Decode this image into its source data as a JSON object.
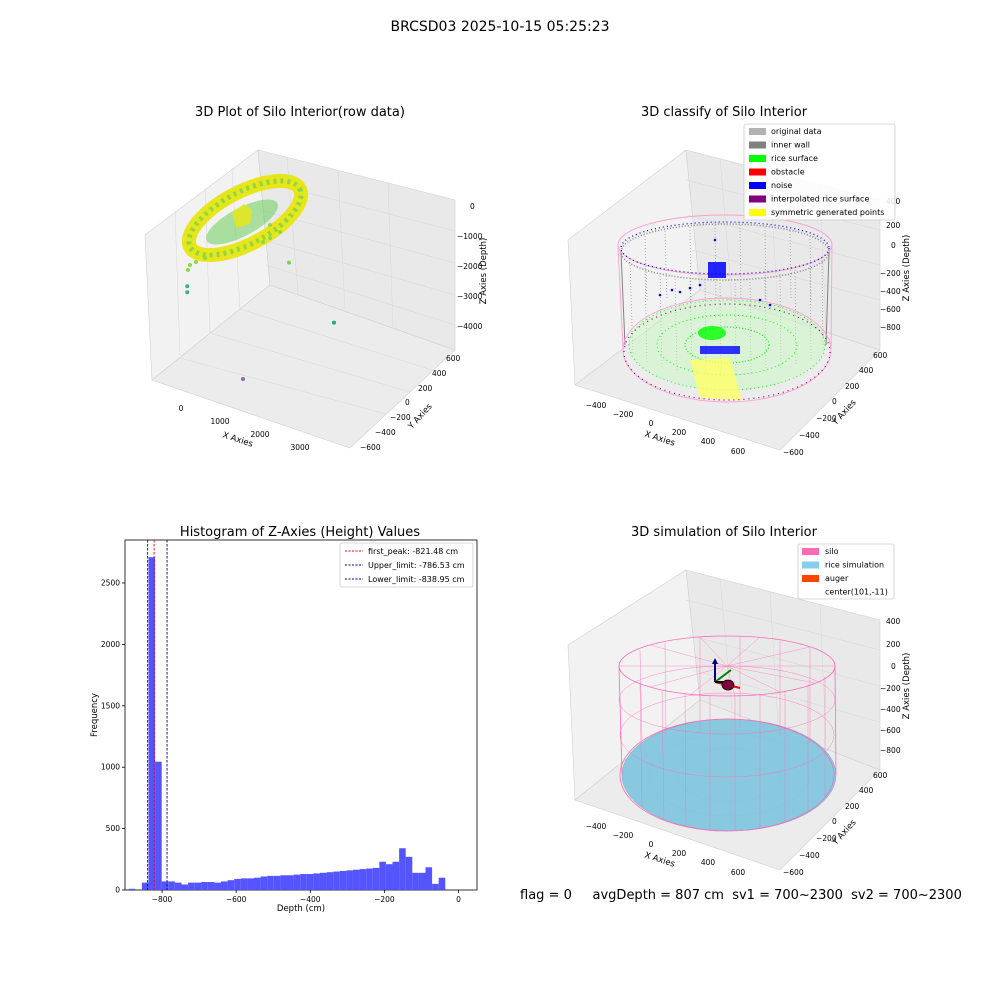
{
  "figure_title": "BRCSD03 2025-10-15 05:25:23",
  "status": {
    "flag": "flag = 0",
    "avg_depth": "avgDepth = 807 cm",
    "sv1": "sv1 = 700~2300",
    "sv2": "sv2 = 700~2300"
  },
  "colors": {
    "pane": "#f2f2f2",
    "grid": "#d8d8d8",
    "hist_bar": "#4c4cff",
    "rice": "#89c9e0",
    "silo": "#ff69b4",
    "auger": "#ff4500",
    "noise": "#0000ff",
    "inner_wall": "#808080",
    "rice_surface": "#00ff00",
    "interpolated": "#800080",
    "symmetric": "#ffff00",
    "original": "#b2b2b2"
  },
  "chart_data": [
    {
      "id": "raw",
      "type": "scatter",
      "title": "3D Plot of Silo Interior(row data)",
      "xlabel": "X Axies",
      "ylabel": "Y Axies",
      "zlabel": "Z Axies (Depth)",
      "x_ticks": [
        "0",
        "1000",
        "2000",
        "3000"
      ],
      "y_ticks": [
        "−600",
        "−400",
        "−200",
        "0",
        "200",
        "400",
        "600"
      ],
      "z_ticks": [
        "−4000",
        "−3000",
        "−2000",
        "−1000",
        "0"
      ],
      "outlier_points": [
        {
          "x": 150,
          "y": 50,
          "z": -2800,
          "color": "#3fae8c"
        },
        {
          "x": 150,
          "y": 50,
          "z": -3000,
          "color": "#3fae8c"
        },
        {
          "x": 1800,
          "y": 300,
          "z": -2100,
          "color": "#7ad151"
        },
        {
          "x": 2800,
          "y": 300,
          "z": -3700,
          "color": "#22a884"
        },
        {
          "x": 2000,
          "y": -200,
          "z": -4400,
          "color": "#8c6bb1"
        }
      ]
    },
    {
      "id": "classify",
      "type": "scatter",
      "title": "3D classify of Silo Interior",
      "xlabel": "X Axies",
      "ylabel": "Y Axies",
      "zlabel": "Z Axies (Depth)",
      "x_ticks": [
        "−400",
        "−200",
        "0",
        "200",
        "400",
        "600"
      ],
      "y_ticks": [
        "−600",
        "−400",
        "−200",
        "0",
        "200",
        "400",
        "600"
      ],
      "z_ticks": [
        "−800",
        "−600",
        "−400",
        "−200",
        "0",
        "200",
        "400"
      ],
      "legend": [
        {
          "label": "original data",
          "color": "#b2b2b2"
        },
        {
          "label": "inner wall",
          "color": "#808080"
        },
        {
          "label": "rice surface",
          "color": "#00ff00"
        },
        {
          "label": "obstacle",
          "color": "#ff0000"
        },
        {
          "label": "noise",
          "color": "#0000ff"
        },
        {
          "label": "interpolated rice surface",
          "color": "#800080"
        },
        {
          "label": "symmetric generated points",
          "color": "#ffff00"
        }
      ],
      "legend_position": "top-right"
    },
    {
      "id": "hist",
      "type": "bar",
      "title": "Histogram of Z-Axies (Height) Values",
      "xlabel": "Depth (cm)",
      "ylabel": "Frequency",
      "xlim": [
        -900,
        50
      ],
      "ylim": [
        0,
        2850
      ],
      "x_tick_values": [
        -800,
        -600,
        -400,
        -200,
        0
      ],
      "x_tick_labels": [
        "−800",
        "−600",
        "−400",
        "−200",
        "0"
      ],
      "y_tick_values": [
        0,
        500,
        1000,
        1500,
        2000,
        2500
      ],
      "y_tick_labels": [
        "0",
        "500",
        "1000",
        "1500",
        "2000",
        "2500"
      ],
      "bin_start": -890,
      "bin_width": 17.8,
      "values": [
        10,
        0,
        60,
        2710,
        1045,
        70,
        70,
        60,
        45,
        60,
        60,
        65,
        65,
        60,
        70,
        80,
        90,
        95,
        95,
        100,
        110,
        115,
        115,
        120,
        120,
        125,
        130,
        130,
        135,
        140,
        145,
        150,
        155,
        160,
        165,
        170,
        175,
        180,
        230,
        210,
        230,
        340,
        270,
        140,
        140,
        185,
        50,
        100
      ],
      "lines": [
        {
          "label": "first_peak: -821.48 cm",
          "value": -821.48,
          "color": "#ff0000"
        },
        {
          "label": "Upper_limit: -786.53 cm",
          "value": -786.53,
          "color": "#0000a0"
        },
        {
          "label": "Lower_limit: -838.95 cm",
          "value": -838.95,
          "color": "#0000a0"
        }
      ],
      "legend_position": "top-right"
    },
    {
      "id": "sim",
      "type": "scatter",
      "title": "3D simulation of Silo Interior",
      "xlabel": "X Axies",
      "ylabel": "Y Axies",
      "zlabel": "Z Axies (Depth)",
      "x_ticks": [
        "−400",
        "−200",
        "0",
        "200",
        "400",
        "600"
      ],
      "y_ticks": [
        "−600",
        "−400",
        "−200",
        "0",
        "200",
        "400",
        "600"
      ],
      "z_ticks": [
        "−800",
        "−600",
        "−400",
        "−200",
        "0",
        "200",
        "400"
      ],
      "legend": [
        {
          "label": "silo",
          "color": "#ff69b4"
        },
        {
          "label": "rice simulation",
          "color": "#87ceeb"
        },
        {
          "label": "auger",
          "color": "#ff4500"
        },
        {
          "label": "center(101,-11)",
          "color": ""
        }
      ],
      "legend_position": "top-right"
    }
  ]
}
